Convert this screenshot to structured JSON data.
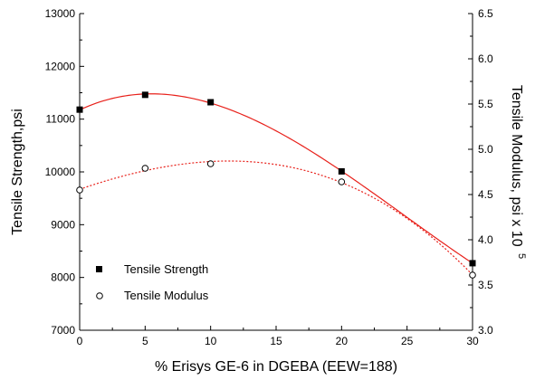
{
  "chart_data": {
    "type": "scatter",
    "xlabel": "% Erisys GE-6 in DGEBA (EEW=188)",
    "ylabel": "Tensile Strength,psi",
    "y2label_main": "Tensile Modulus, psi x 10",
    "y2label_exp": "5",
    "xlim": [
      0,
      30
    ],
    "ylim": [
      7000,
      13000
    ],
    "y2lim": [
      3.0,
      6.5
    ],
    "x_ticks": [
      "0",
      "5",
      "10",
      "15",
      "20",
      "25",
      "30"
    ],
    "y_ticks": [
      "7000",
      "8000",
      "9000",
      "10000",
      "11000",
      "12000",
      "13000"
    ],
    "y2_ticks": [
      "3.0",
      "3.5",
      "4.0",
      "4.5",
      "5.0",
      "5.5",
      "6.0",
      "6.5"
    ],
    "legend_position": "bottom-left",
    "series": [
      {
        "name": "Tensile Strength",
        "axis": "left",
        "marker": "filled-square",
        "color": "#000000",
        "fit_color": "#e8201a",
        "fit_style": "solid",
        "x": [
          0,
          5,
          10,
          20,
          30
        ],
        "y": [
          11180,
          11460,
          11320,
          10010,
          8270
        ]
      },
      {
        "name": "Tensile Modulus",
        "axis": "right",
        "marker": "open-circle",
        "color": "#000000",
        "fit_color": "#e8201a",
        "fit_style": "dotted",
        "x": [
          0,
          5,
          10,
          20,
          30
        ],
        "y": [
          4.55,
          4.79,
          4.84,
          4.64,
          3.61
        ]
      }
    ]
  }
}
